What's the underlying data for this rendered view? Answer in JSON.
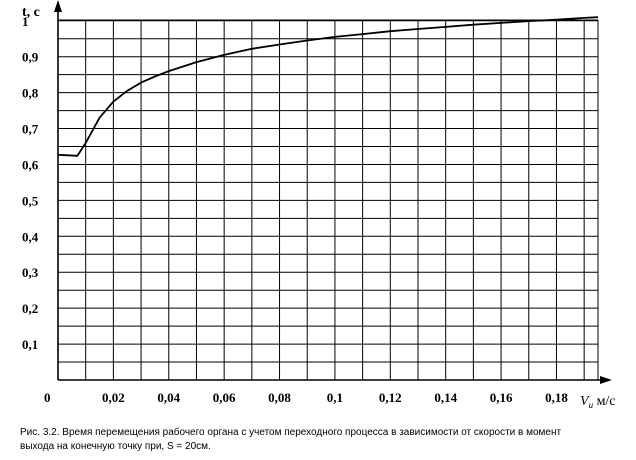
{
  "chart_data": {
    "type": "line",
    "ylabel": "t, с",
    "xlabel_symbol": "V",
    "xlabel_subscript": "и",
    "xlabel_unit": " м/с",
    "origin_label": "0",
    "x_ticks": [
      "0,02",
      "0,04",
      "0,06",
      "0,08",
      "0,1",
      "0,12",
      "0,14",
      "0,16",
      "0,18"
    ],
    "y_ticks": [
      "0,1",
      "0,2",
      "0,3",
      "0,4",
      "0,5",
      "0,6",
      "0,7",
      "0,8",
      "0,9",
      "1"
    ],
    "xlim": [
      0,
      0.195
    ],
    "ylim": [
      0,
      1.03
    ],
    "grid": true,
    "series": [
      {
        "x": [
          0,
          0.007,
          0.01,
          0.015,
          0.02,
          0.025,
          0.03,
          0.035,
          0.04,
          0.05,
          0.06,
          0.07,
          0.08,
          0.09,
          0.1,
          0.11,
          0.12,
          0.13,
          0.14,
          0.15,
          0.16,
          0.17,
          0.18,
          0.19,
          0.195
        ],
        "y": [
          0.627,
          0.624,
          0.66,
          0.73,
          0.775,
          0.805,
          0.828,
          0.845,
          0.86,
          0.885,
          0.905,
          0.922,
          0.934,
          0.945,
          0.955,
          0.963,
          0.971,
          0.977,
          0.983,
          0.989,
          0.994,
          0.999,
          1.003,
          1.008,
          1.01
        ]
      }
    ]
  },
  "caption": {
    "line1": "Рис. 3.2. Время перемещения рабочего органа с учетом переходного процесса в зависимости от скорости в момент",
    "line2": "выхода на конечную точку при, S = 20см."
  }
}
